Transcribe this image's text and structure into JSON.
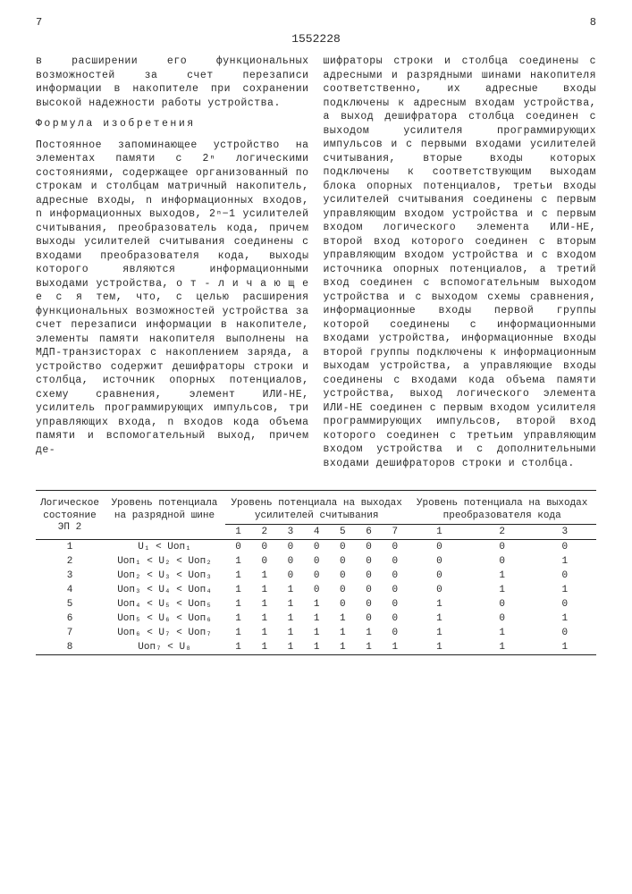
{
  "page_left": "7",
  "page_right": "8",
  "doc_number": "1552228",
  "col_left": {
    "p1": "в расширении его функциональных возможностей за счет перезаписи информации в накопителе при сохранении высокой надежности работы устройства.",
    "formula_head": "Формула изобретения",
    "p2": "Постоянное запоминающее устройство на элементах памяти с 2ⁿ логическими состояниями, содержащее организованный по строкам и столбцам матричный накопитель, адресные входы, n информационных входов, n информационных выходов, 2ⁿ−1 усилителей считывания, преобразователь кода, причем выходы усилителей считывания соединены с входами преобразователя кода, выходы которого являются информационными выходами устройства, о т - л и ч а ю щ е е с я  тем, что, с целью расширения функциональных возможностей устройства за счет перезаписи информации в накопителе, элементы памяти накопителя выполнены на МДП-транзисторах с накоплением заряда, а устройство содержит дешифраторы строки и столбца, источник опорных потенциалов, схему сравнения, элемент ИЛИ-НЕ, усилитель программирующих импульсов, три управляющих входа, n входов кода объема памяти и вспомогательный выход, причем де-"
  },
  "col_right": {
    "p1": "шифраторы строки и столбца соединены с адресными и разрядными шинами накопителя соответственно, их адресные входы подключены к адресным входам устройства, а выход дешифратора столбца соединен с выходом усилителя программирующих импульсов и с первыми входами усилителей считывания, вторые входы которых подключены к соответствующим выходам блока опорных потенциалов, третьи входы усилителей считывания соединены с первым управляющим входом устройства и с первым входом логического элемента ИЛИ-НЕ, второй вход которого соединен с вторым управляющим входом устройства и с входом источника опорных потенциалов, а третий вход соединен с вспомогательным выходом устройства и с выходом схемы сравнения, информационные входы первой группы которой соединены с информационными входами устройства, информационные входы второй группы подключены к информационным выходам устройства, а управляющие входы соединены с входами кода объема памяти устройства, выход логического элемента ИЛИ-НЕ соединен с первым входом усилителя программирующих импульсов, второй вход которого соединен с третьим управляющим входом устройства и с дополнительными входами дешифраторов строки и столбца."
  },
  "table": {
    "h1": "Логическое состояние ЭП 2",
    "h2": "Уровень потенциала на разрядной шине",
    "h3": "Уровень потенциала на выходах усилителей считывания",
    "h4": "Уровень потенциала на выходах преобразователя кода",
    "sub_amp": [
      "1",
      "2",
      "3",
      "4",
      "5",
      "6",
      "7"
    ],
    "sub_code": [
      "1",
      "2",
      "3"
    ],
    "rows": [
      {
        "n": "1",
        "cond": "U₁ < Uоп₁",
        "amp": [
          "0",
          "0",
          "0",
          "0",
          "0",
          "0",
          "0"
        ],
        "code": [
          "0",
          "0",
          "0"
        ]
      },
      {
        "n": "2",
        "cond": "Uоп₁ < U₂ < Uоп₂",
        "amp": [
          "1",
          "0",
          "0",
          "0",
          "0",
          "0",
          "0"
        ],
        "code": [
          "0",
          "0",
          "1"
        ]
      },
      {
        "n": "3",
        "cond": "Uоп₂ < U₃ < Uоп₃",
        "amp": [
          "1",
          "1",
          "0",
          "0",
          "0",
          "0",
          "0"
        ],
        "code": [
          "0",
          "1",
          "0"
        ]
      },
      {
        "n": "4",
        "cond": "Uоп₃ < U₄ < Uоп₄",
        "amp": [
          "1",
          "1",
          "1",
          "0",
          "0",
          "0",
          "0"
        ],
        "code": [
          "0",
          "1",
          "1"
        ]
      },
      {
        "n": "5",
        "cond": "Uоп₄ < U₅ < Uоп₅",
        "amp": [
          "1",
          "1",
          "1",
          "1",
          "0",
          "0",
          "0"
        ],
        "code": [
          "1",
          "0",
          "0"
        ]
      },
      {
        "n": "6",
        "cond": "Uоп₅ < U₆ < Uоп₆",
        "amp": [
          "1",
          "1",
          "1",
          "1",
          "1",
          "0",
          "0"
        ],
        "code": [
          "1",
          "0",
          "1"
        ]
      },
      {
        "n": "7",
        "cond": "Uоп₆ < U₇ < Uоп₇",
        "amp": [
          "1",
          "1",
          "1",
          "1",
          "1",
          "1",
          "0"
        ],
        "code": [
          "1",
          "1",
          "0"
        ]
      },
      {
        "n": "8",
        "cond": "Uоп₇ < U₈",
        "amp": [
          "1",
          "1",
          "1",
          "1",
          "1",
          "1",
          "1"
        ],
        "code": [
          "1",
          "1",
          "1"
        ]
      }
    ]
  }
}
